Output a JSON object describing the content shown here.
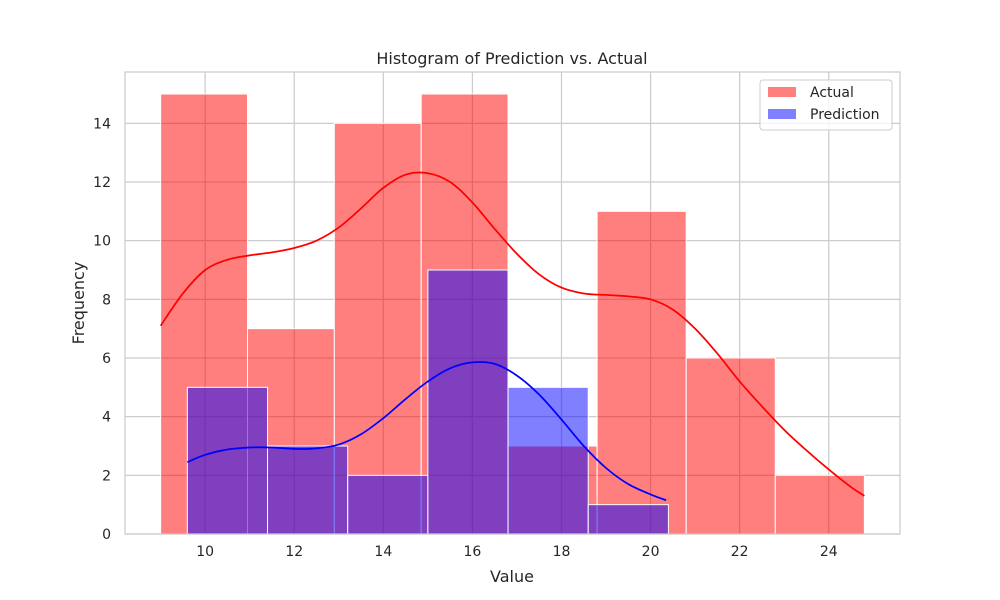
{
  "chart_data": {
    "type": "histogram",
    "title": "Histogram of Prediction vs. Actual",
    "xlabel": "Value",
    "ylabel": "Frequency",
    "xlim": [
      8.2,
      25.6
    ],
    "ylim": [
      0,
      15.75
    ],
    "xticks": [
      10,
      12,
      14,
      16,
      18,
      20,
      22,
      24
    ],
    "yticks": [
      0,
      2,
      4,
      6,
      8,
      10,
      12,
      14
    ],
    "grid": true,
    "legend_position": "top-right",
    "series": [
      {
        "name": "Actual",
        "color": "#ff0000",
        "bins": [
          {
            "x0": 9.0,
            "x1": 10.95,
            "count": 15
          },
          {
            "x0": 10.95,
            "x1": 12.9,
            "count": 7
          },
          {
            "x0": 12.9,
            "x1": 14.85,
            "count": 14
          },
          {
            "x0": 14.85,
            "x1": 16.8,
            "count": 15
          },
          {
            "x0": 16.8,
            "x1": 18.8,
            "count": 3
          },
          {
            "x0": 18.8,
            "x1": 20.8,
            "count": 11
          },
          {
            "x0": 20.8,
            "x1": 22.8,
            "count": 6
          },
          {
            "x0": 22.8,
            "x1": 24.8,
            "count": 2
          }
        ],
        "kde": [
          [
            9.0,
            7.1
          ],
          [
            9.5,
            8.2
          ],
          [
            10.0,
            9.0
          ],
          [
            10.5,
            9.35
          ],
          [
            11.0,
            9.5
          ],
          [
            11.5,
            9.6
          ],
          [
            12.0,
            9.75
          ],
          [
            12.5,
            10.0
          ],
          [
            13.0,
            10.45
          ],
          [
            13.5,
            11.1
          ],
          [
            14.0,
            11.8
          ],
          [
            14.5,
            12.25
          ],
          [
            15.0,
            12.3
          ],
          [
            15.5,
            12.0
          ],
          [
            16.0,
            11.3
          ],
          [
            16.5,
            10.4
          ],
          [
            17.0,
            9.55
          ],
          [
            17.5,
            8.85
          ],
          [
            18.0,
            8.4
          ],
          [
            18.5,
            8.2
          ],
          [
            19.0,
            8.15
          ],
          [
            19.5,
            8.1
          ],
          [
            20.0,
            8.0
          ],
          [
            20.5,
            7.65
          ],
          [
            21.0,
            7.0
          ],
          [
            21.5,
            6.15
          ],
          [
            22.0,
            5.2
          ],
          [
            22.5,
            4.35
          ],
          [
            23.0,
            3.55
          ],
          [
            23.5,
            2.85
          ],
          [
            24.0,
            2.2
          ],
          [
            24.5,
            1.6
          ],
          [
            24.8,
            1.3
          ]
        ]
      },
      {
        "name": "Prediction",
        "color": "#0000ff",
        "bins": [
          {
            "x0": 9.6,
            "x1": 11.4,
            "count": 5
          },
          {
            "x0": 11.4,
            "x1": 13.2,
            "count": 3
          },
          {
            "x0": 13.2,
            "x1": 15.0,
            "count": 2
          },
          {
            "x0": 15.0,
            "x1": 16.8,
            "count": 9
          },
          {
            "x0": 16.8,
            "x1": 18.6,
            "count": 5
          },
          {
            "x0": 18.6,
            "x1": 20.4,
            "count": 1
          }
        ],
        "kde": [
          [
            9.6,
            2.45
          ],
          [
            10.0,
            2.7
          ],
          [
            10.5,
            2.88
          ],
          [
            11.0,
            2.95
          ],
          [
            11.5,
            2.95
          ],
          [
            12.0,
            2.9
          ],
          [
            12.5,
            2.92
          ],
          [
            13.0,
            3.05
          ],
          [
            13.5,
            3.4
          ],
          [
            14.0,
            3.95
          ],
          [
            14.5,
            4.6
          ],
          [
            15.0,
            5.2
          ],
          [
            15.5,
            5.65
          ],
          [
            16.0,
            5.85
          ],
          [
            16.5,
            5.8
          ],
          [
            17.0,
            5.4
          ],
          [
            17.5,
            4.75
          ],
          [
            18.0,
            3.9
          ],
          [
            18.5,
            3.0
          ],
          [
            19.0,
            2.25
          ],
          [
            19.5,
            1.7
          ],
          [
            20.0,
            1.35
          ],
          [
            20.35,
            1.15
          ]
        ]
      }
    ]
  }
}
